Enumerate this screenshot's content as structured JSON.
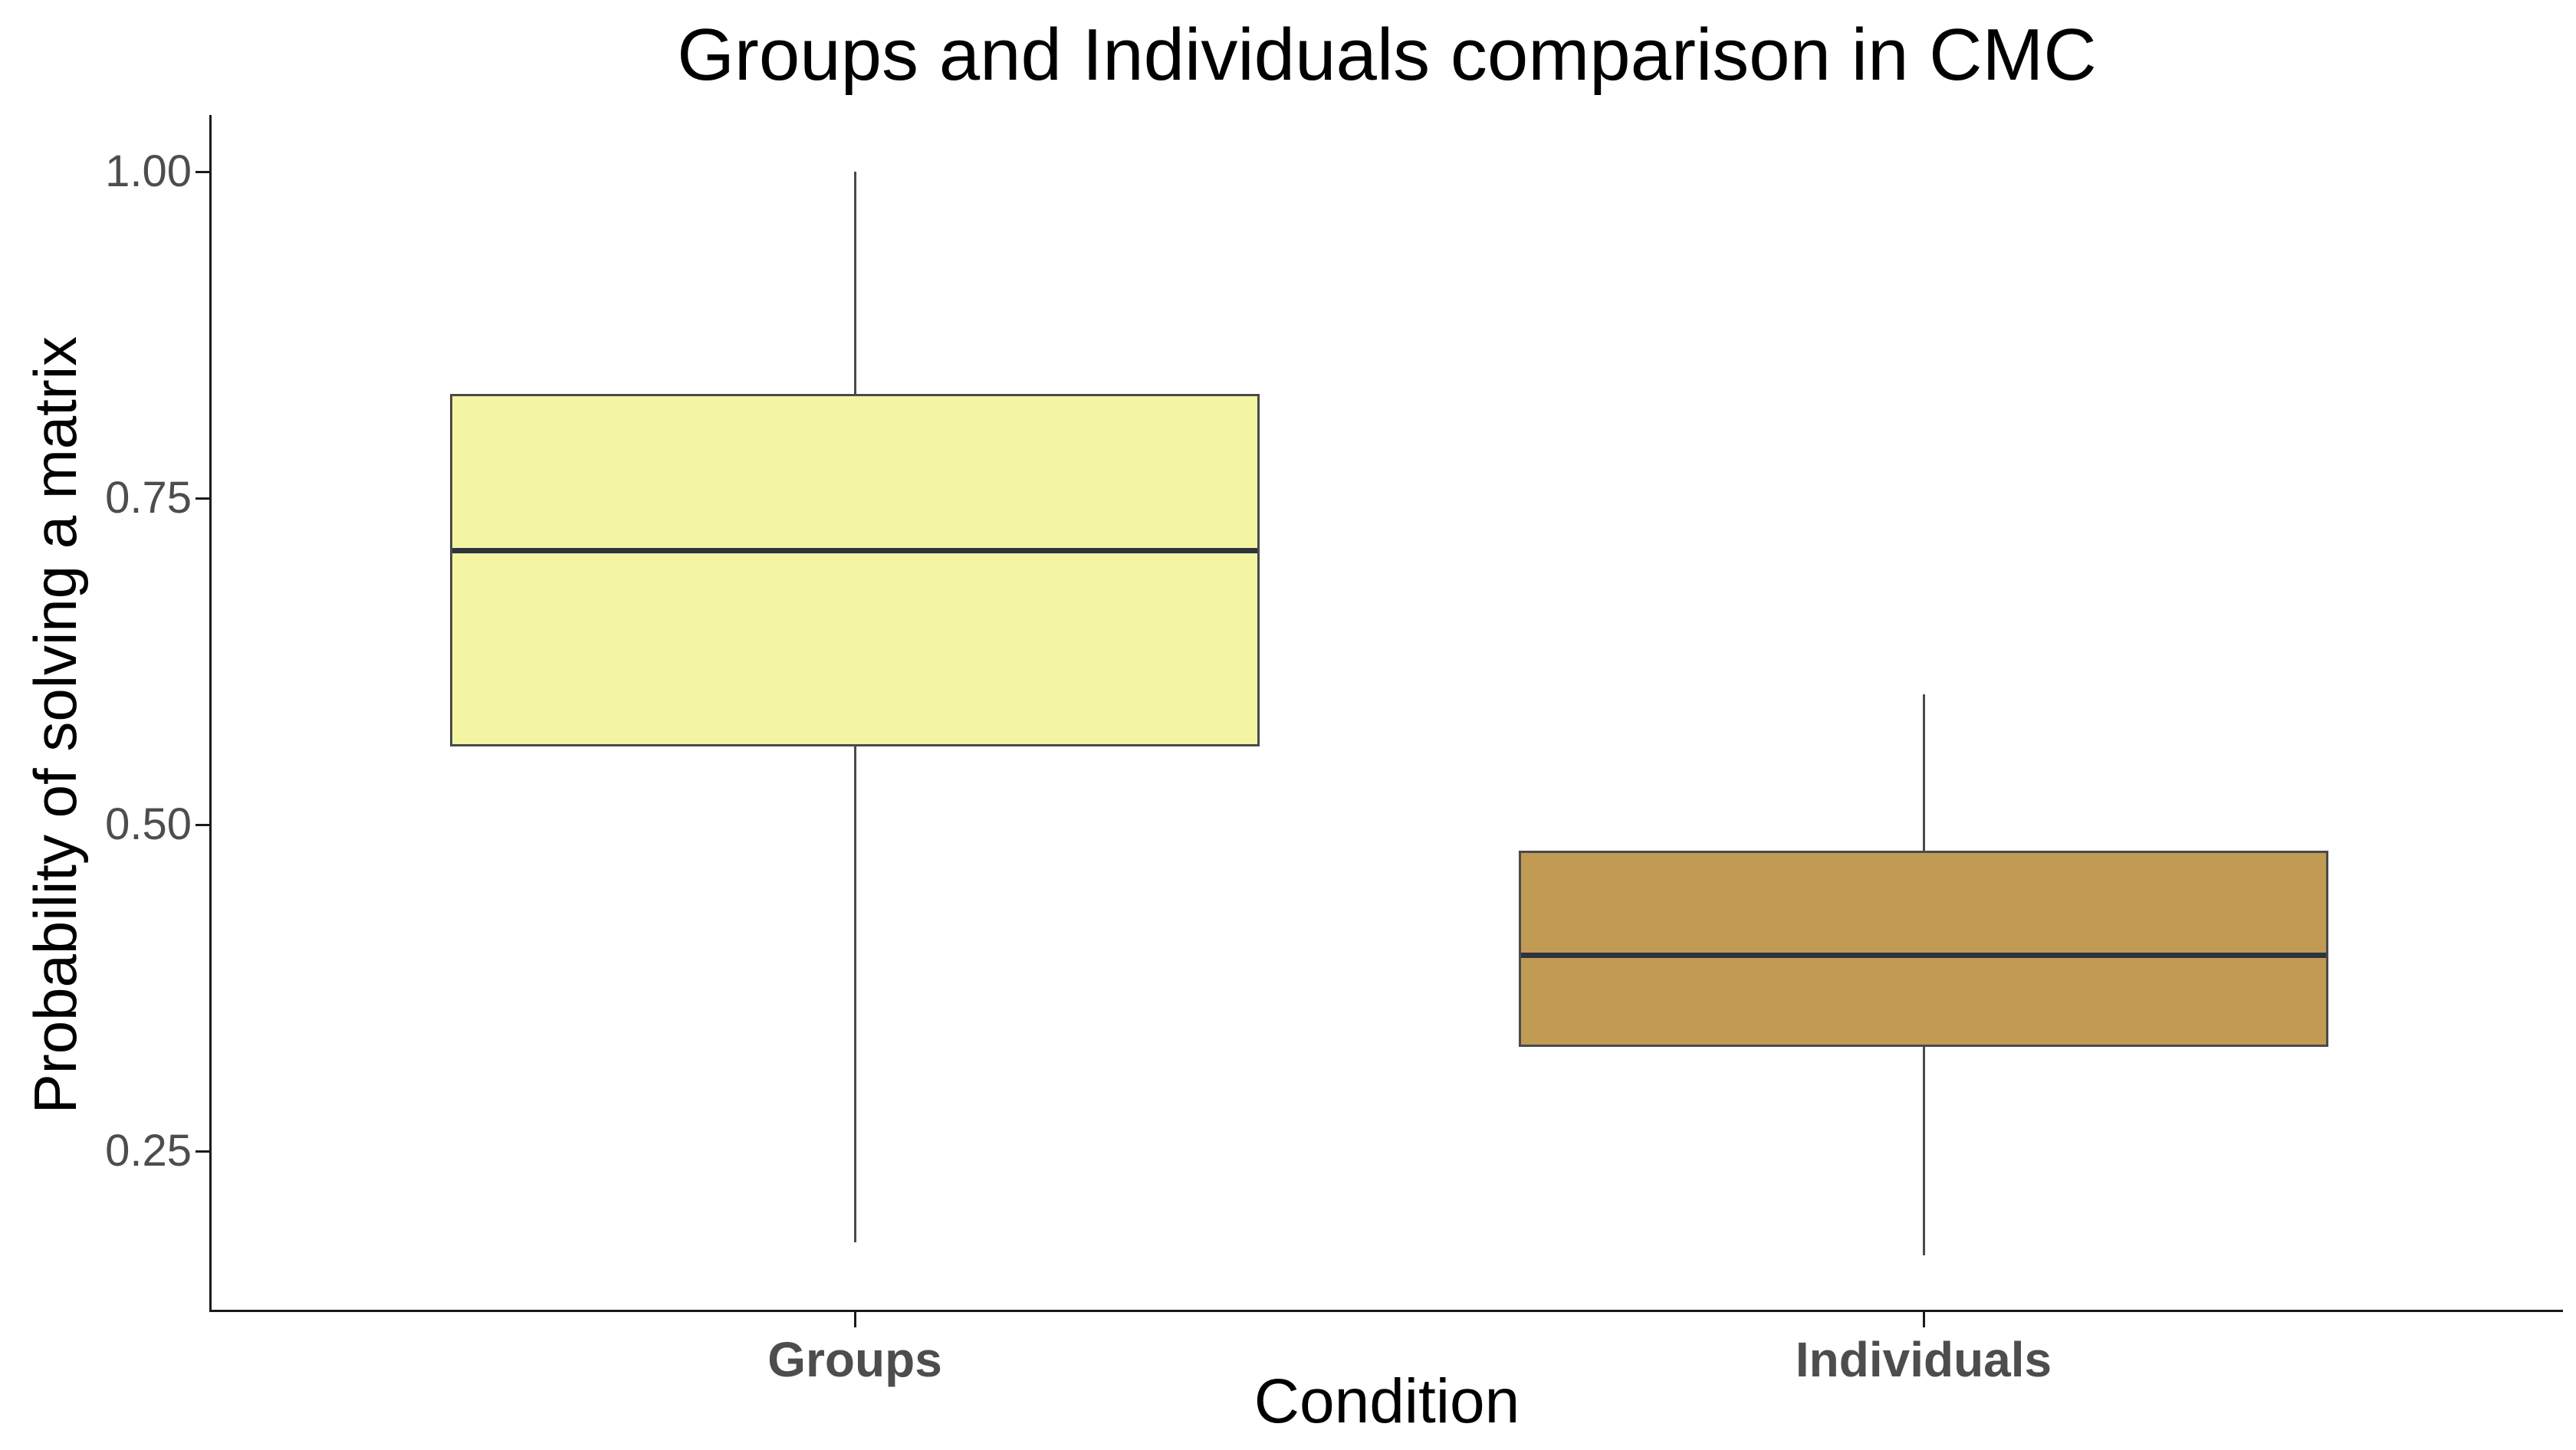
{
  "chart_data": {
    "type": "boxplot",
    "title": "Groups and Individuals comparison in CMC",
    "xlabel": "Condition",
    "ylabel": "Probability of solving a matrix",
    "categories": [
      "Groups",
      "Individuals"
    ],
    "y_tick_values": [
      1.0,
      0.75,
      0.5,
      0.25
    ],
    "y_tick_labels": [
      "1.00",
      "0.75",
      "0.50",
      "0.25"
    ],
    "ylim": [
      0.13,
      1.03
    ],
    "grid": false,
    "legend": "none",
    "series": [
      {
        "name": "Groups",
        "min": 0.18,
        "q1": 0.56,
        "median": 0.71,
        "q3": 0.83,
        "max": 1.0,
        "fill": "#F4F5A3"
      },
      {
        "name": "Individuals",
        "min": 0.17,
        "q1": 0.33,
        "median": 0.4,
        "q3": 0.48,
        "max": 0.6,
        "fill": "#C19A53"
      }
    ],
    "colors": {
      "box_border": "#4A4A4A",
      "whisker": "#4A4A4A",
      "median_line": "#2E3340",
      "axis_line": "#1A1A1A",
      "tick_text": "#4D4D4D",
      "title_text": "#000000"
    }
  }
}
